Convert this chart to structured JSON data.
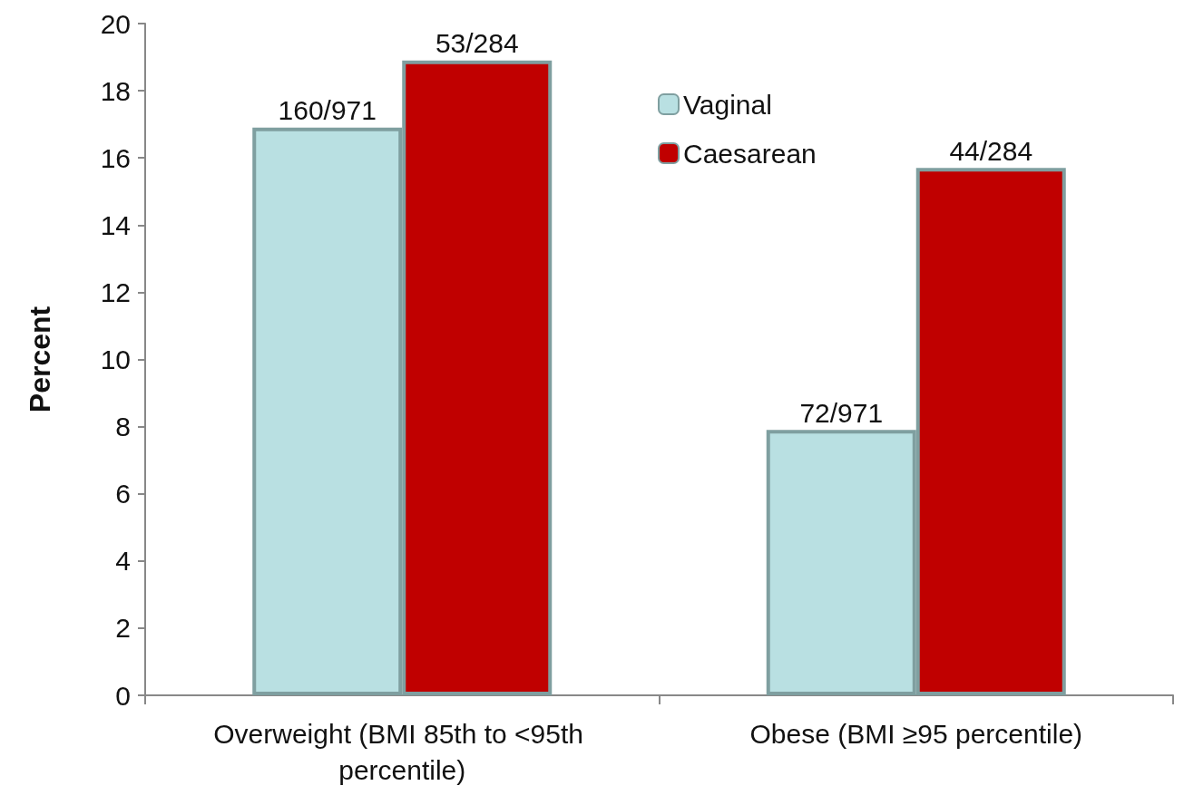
{
  "chart_data": {
    "type": "bar",
    "ylabel": "Percent",
    "categories": [
      "Overweight (BMI 85th to <95th percentile)",
      "Obese (BMI ≥95 percentile)"
    ],
    "series": [
      {
        "name": "Vaginal",
        "color": "#b9e0e2",
        "values": [
          16.9,
          7.9
        ],
        "value_labels": [
          "160/971",
          "72/971"
        ]
      },
      {
        "name": "Caesarean",
        "color": "#c00000",
        "values": [
          18.9,
          15.7
        ],
        "value_labels": [
          "53/284",
          "44/284"
        ]
      }
    ],
    "ylim": [
      0,
      20
    ],
    "yticks": [
      0,
      2,
      4,
      6,
      8,
      10,
      12,
      14,
      16,
      18,
      20
    ],
    "grid": false,
    "legend": "top right"
  }
}
